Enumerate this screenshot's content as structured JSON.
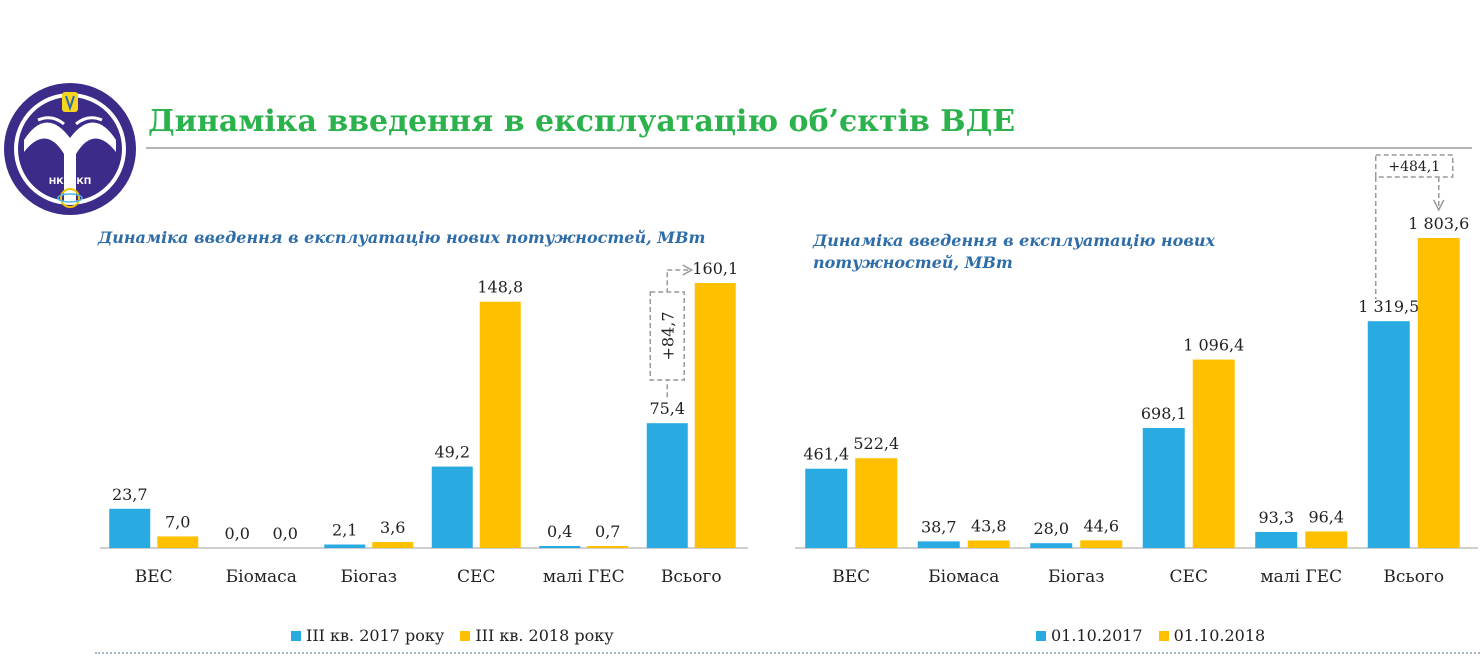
{
  "header": {
    "title": "Динаміка введення в експлуатацію об’єктів ВДЕ",
    "logo_text": "НКРЕКП"
  },
  "colors": {
    "series1": "#29abe2",
    "series2": "#ffc000",
    "title": "#2bb24c",
    "subtitle": "#2f6da8"
  },
  "chart_data": [
    {
      "type": "bar",
      "title": "Динаміка введення в експлуатацію нових потужностей, МВт",
      "categories": [
        "ВЕС",
        "Біомаса",
        "Біогаз",
        "СЕС",
        "малі ГЕС",
        "Всього"
      ],
      "series": [
        {
          "name": "III кв. 2017 року",
          "values": [
            23.7,
            0.0,
            2.1,
            49.2,
            0.4,
            75.4
          ],
          "labels": [
            "23,7",
            "0,0",
            "2,1",
            "49,2",
            "0,4",
            "75,4"
          ]
        },
        {
          "name": "III кв. 2018 року",
          "values": [
            7.0,
            0.0,
            3.6,
            148.8,
            0.7,
            160.1
          ],
          "labels": [
            "7,0",
            "0,0",
            "3,6",
            "148,8",
            "0,7",
            "160,1"
          ]
        }
      ],
      "ylim": [
        0,
        160.1
      ],
      "annotation": "+84,7",
      "legend": "bottom"
    },
    {
      "type": "bar",
      "title": "Динаміка введення в експлуатацію нових потужностей, МВт",
      "categories": [
        "ВЕС",
        "Біомаса",
        "Біогаз",
        "СЕС",
        "малі ГЕС",
        "Всього"
      ],
      "series": [
        {
          "name": "01.10.2017",
          "values": [
            461.4,
            38.7,
            28.0,
            698.1,
            93.3,
            1319.5
          ],
          "labels": [
            "461,4",
            "38,7",
            "28,0",
            "698,1",
            "93,3",
            "1 319,5"
          ]
        },
        {
          "name": "01.10.2018",
          "values": [
            522.4,
            43.8,
            44.6,
            1096.4,
            96.4,
            1803.6
          ],
          "labels": [
            "522,4",
            "43,8",
            "44,6",
            "1 096,4",
            "96,4",
            "1 803,6"
          ]
        }
      ],
      "ylim": [
        0,
        1803.6
      ],
      "annotation": "+484,1",
      "legend": "bottom"
    }
  ]
}
